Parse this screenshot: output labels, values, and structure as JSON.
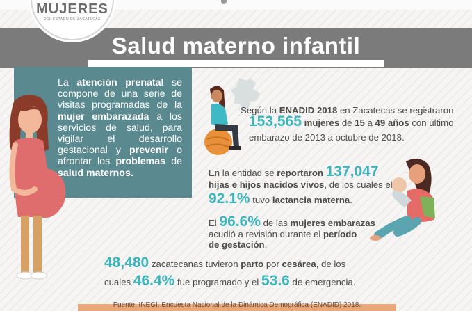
{
  "logo": {
    "word": "MUJERES",
    "subtitle": "DEL ESTADO DE ZACATECAS"
  },
  "title": "Salud materno infantil",
  "prenatal": {
    "t1": "La ",
    "b1": "atención prenatal",
    "t2": " se compone de una serie de visitas programadas de la ",
    "b2": "mujer embarazada",
    "t3": " a los servicios de salud, para vigilar el desarrollo gestacional y ",
    "b3": "prevenir",
    "t4": " o afrontar los ",
    "b4": "problemas",
    "t5": " de ",
    "b5": "salud maternos."
  },
  "enadid": {
    "t1": "Según la ",
    "b1": "ENADID 2018",
    "t2": " en Zacatecas se registraron",
    "num": "153,565",
    "t3": " ",
    "b2": "mujeres",
    "t4": " de ",
    "b3": "15",
    "t5": " a ",
    "b4": "49 años",
    "t6": " con último",
    "t7": "embarazo de 2013 a octubre de 2018."
  },
  "births": {
    "t1": "En la entidad se ",
    "b1": "reportaron",
    "num": "137,047",
    "b2": "hijas e hijos nacidos vivos",
    "t2": ", de los cuales el",
    "pct": "92.1%",
    "t3": " tuvo ",
    "b3": "lactancia materna",
    "t4": "."
  },
  "checkups": {
    "t1": "El ",
    "pct": "96.6%",
    "t2": " de las ",
    "b1": "mujeres embarazas",
    "t3": "acudió a revisión durante el ",
    "b2": "período",
    "b3": "de gestación",
    "t4": "."
  },
  "cesarea": {
    "num": "48,480",
    "t1": " zacatecanas tuvieron ",
    "b1": "parto",
    "t2": " por ",
    "b2": "cesárea",
    "t3": ", de los",
    "t4": "cuales ",
    "pct1": "46.4%",
    "t5": " fue programado y el ",
    "pct2": "53.6",
    "t6": " de emergencia."
  },
  "source": "Fuente: INEGI. Encuesta Nacional de la Dinámica Demográfica (ENADID) 2018.",
  "colors": {
    "title_band": "#7b7b7b",
    "teal_box": "#5b8990",
    "accent_teal": "#3cb4bd",
    "source_bar": "#e7a97b"
  }
}
